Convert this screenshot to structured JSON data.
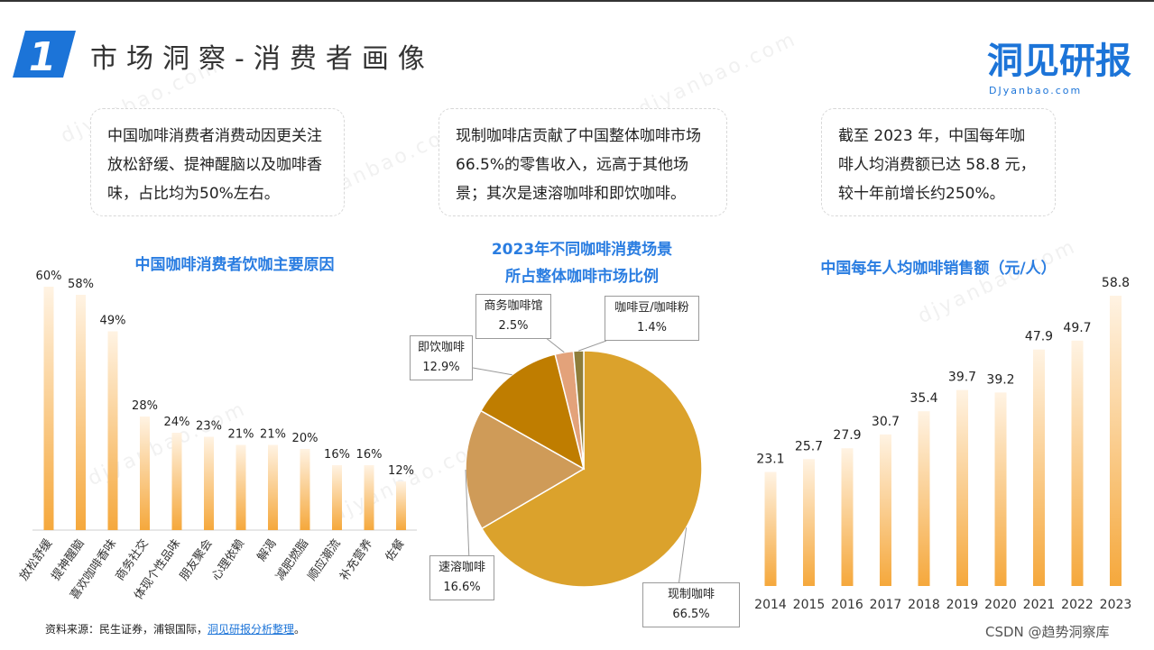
{
  "header": {
    "badge_number": "1",
    "title": "市场洞察-消费者画像",
    "logo_main": "洞见研报",
    "logo_sub": "DJyanbao.com"
  },
  "watermark": "djyanbao.com",
  "insights": [
    "中国咖啡消费者消费动因更关注放松舒缓、提神醒脑以及咖啡香味，占比均为50%左右。",
    "现制咖啡店贡献了中国整体咖啡市场66.5%的零售收入，远高于其他场景；其次是速溶咖啡和即饮咖啡。",
    "截至 2023 年，中国每年咖啡人均消费额已达 58.8 元，较十年前增长约250%。"
  ],
  "chart_data": [
    {
      "type": "bar",
      "title": "中国咖啡消费者饮咖主要原因",
      "categories": [
        "放松舒缓",
        "提神醒脑",
        "喜欢咖啡香味",
        "商务社交",
        "体现个性品味",
        "朋友聚会",
        "心理依赖",
        "解渴",
        "减肥燃脂",
        "顺应潮流",
        "补充营养",
        "佐餐"
      ],
      "values": [
        60,
        58,
        49,
        28,
        24,
        23,
        21,
        21,
        20,
        16,
        16,
        12
      ],
      "value_labels": [
        "60%",
        "58%",
        "49%",
        "28%",
        "24%",
        "23%",
        "21%",
        "21%",
        "20%",
        "16%",
        "16%",
        "12%"
      ],
      "ylim": [
        0,
        60
      ],
      "colors": {
        "top": "#fff3e3",
        "bottom": "#f5a83c"
      }
    },
    {
      "type": "pie",
      "title": "2023年不同咖啡消费场景所占整体咖啡市场比例",
      "title_lines": [
        "2023年不同咖啡消费场景",
        "所占整体咖啡市场比例"
      ],
      "slices": [
        {
          "name": "现制咖啡",
          "value": 66.5,
          "label": "66.5%",
          "color": "#dba22c"
        },
        {
          "name": "速溶咖啡",
          "value": 16.6,
          "label": "16.6%",
          "color": "#cf9b58"
        },
        {
          "name": "即饮咖啡",
          "value": 12.9,
          "label": "12.9%",
          "color": "#bf7d00"
        },
        {
          "name": "商务咖啡馆",
          "value": 2.5,
          "label": "2.5%",
          "color": "#e3a27a"
        },
        {
          "name": "咖啡豆/咖啡粉",
          "value": 1.4,
          "label": "1.4%",
          "color": "#8f7d3a"
        }
      ]
    },
    {
      "type": "bar",
      "title": "中国每年人均咖啡销售额（元/人）",
      "categories": [
        "2014",
        "2015",
        "2016",
        "2017",
        "2018",
        "2019",
        "2020",
        "2021",
        "2022",
        "2023"
      ],
      "values": [
        23.1,
        25.7,
        27.9,
        30.7,
        35.4,
        39.7,
        39.2,
        47.9,
        49.7,
        58.8
      ],
      "value_labels": [
        "23.1",
        "25.7",
        "27.9",
        "30.7",
        "35.4",
        "39.7",
        "39.2",
        "47.9",
        "49.7",
        "58.8"
      ],
      "ylim": [
        0,
        58.8
      ],
      "colors": {
        "top": "#fff3e3",
        "bottom": "#f5a83c"
      }
    }
  ],
  "footer": {
    "source_prefix": "资料来源：民生证券，浦银国际，",
    "source_link": "洞见研报分析整理",
    "source_suffix": "。",
    "credit": "CSDN @趋势洞察库"
  }
}
